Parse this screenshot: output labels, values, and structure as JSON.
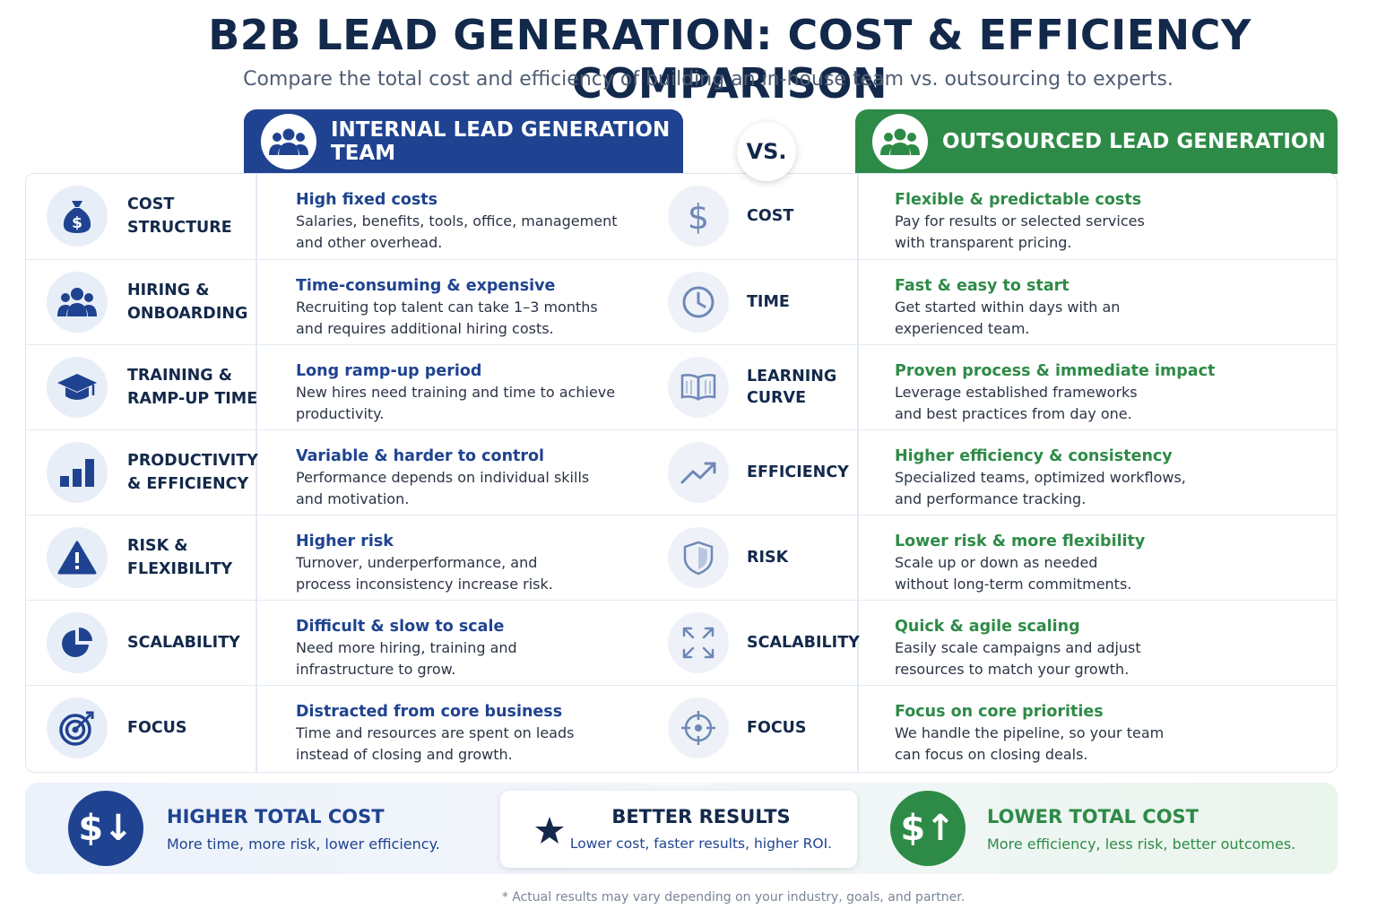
{
  "title": "B2B LEAD GENERATION: COST & EFFICIENCY COMPARISON",
  "subtitle": "Compare the total cost and efficiency of building an in-house team vs. outsourcing to experts.",
  "columns": {
    "internal": {
      "label": "INTERNAL LEAD GENERATION TEAM",
      "icon": "team-icon",
      "color": "#1f4390"
    },
    "vs": "VS.",
    "outsourced": {
      "label": "OUTSOURCED LEAD GENERATION",
      "icon": "team-icon",
      "color": "#2e8b47"
    }
  },
  "rows": [
    {
      "category": [
        "COST",
        "STRUCTURE"
      ],
      "icon": "money-bag-icon",
      "internal_title": "High fixed costs",
      "internal_text": [
        "Salaries, benefits, tools, office, management",
        "and other overhead."
      ],
      "out_category": [
        "COST"
      ],
      "out_icon": "dollar-icon",
      "out_title": "Flexible & predictable costs",
      "out_text": [
        "Pay for results or selected services",
        "with transparent pricing."
      ]
    },
    {
      "category": [
        "HIRING &",
        "ONBOARDING"
      ],
      "icon": "people-icon",
      "internal_title": "Time-consuming & expensive",
      "internal_text": [
        "Recruiting top talent can take 1–3 months",
        "and requires additional hiring costs."
      ],
      "out_category": [
        "TIME"
      ],
      "out_icon": "clock-icon",
      "out_title": "Fast & easy to start",
      "out_text": [
        "Get started within days with an",
        "experienced team."
      ]
    },
    {
      "category": [
        "TRAINING &",
        "RAMP-UP TIME"
      ],
      "icon": "graduation-cap-icon",
      "internal_title": "Long ramp-up period",
      "internal_text": [
        "New hires need training and time to achieve",
        "productivity."
      ],
      "out_category": [
        "LEARNING",
        "CURVE"
      ],
      "out_icon": "book-icon",
      "out_title": "Proven process & immediate impact",
      "out_text": [
        "Leverage established frameworks",
        "and best practices from day one."
      ]
    },
    {
      "category": [
        "PRODUCTIVITY",
        "& EFFICIENCY"
      ],
      "icon": "bar-chart-icon",
      "internal_title": "Variable & harder to control",
      "internal_text": [
        "Performance depends on individual skills",
        "and motivation."
      ],
      "out_category": [
        "EFFICIENCY"
      ],
      "out_icon": "trend-up-icon",
      "out_title": "Higher efficiency & consistency",
      "out_text": [
        "Specialized teams, optimized workflows,",
        "and performance tracking."
      ]
    },
    {
      "category": [
        "RISK &",
        "FLEXIBILITY"
      ],
      "icon": "warning-icon",
      "internal_title": "Higher risk",
      "internal_text": [
        "Turnover, underperformance, and",
        "process inconsistency increase risk."
      ],
      "out_category": [
        "RISK"
      ],
      "out_icon": "shield-icon",
      "out_title": "Lower risk & more flexibility",
      "out_text": [
        "Scale up or down as needed",
        "without long-term commitments."
      ]
    },
    {
      "category": [
        "SCALABILITY"
      ],
      "icon": "pie-chart-icon",
      "internal_title": "Difficult & slow to scale",
      "internal_text": [
        "Need more hiring, training and",
        "infrastructure to grow."
      ],
      "out_category": [
        "SCALABILITY"
      ],
      "out_icon": "expand-icon",
      "out_title": "Quick & agile scaling",
      "out_text": [
        "Easily scale campaigns and adjust",
        "resources to match your growth."
      ]
    },
    {
      "category": [
        "FOCUS"
      ],
      "icon": "target-icon",
      "internal_title": "Distracted from core business",
      "internal_text": [
        "Time and resources are spent on leads",
        "instead of closing and growth."
      ],
      "out_category": [
        "FOCUS"
      ],
      "out_icon": "crosshair-icon",
      "out_title": "Focus on core priorities",
      "out_text": [
        "We handle the pipeline, so your team",
        "can focus on closing deals."
      ]
    }
  ],
  "summary": {
    "left": {
      "symbol": "$↓",
      "title": "HIGHER TOTAL COST",
      "text": "More time, more risk, lower efficiency.",
      "color": "#1f4390"
    },
    "middle": {
      "icon": "star-icon",
      "title": "BETTER RESULTS",
      "text": "Lower cost, faster results, higher ROI."
    },
    "right": {
      "symbol": "$↑",
      "title": "LOWER TOTAL COST",
      "text": "More efficiency, less risk, better outcomes.",
      "color": "#2e8b47"
    }
  },
  "footnote": "* Actual results may vary depending on your industry, goals, and partner."
}
